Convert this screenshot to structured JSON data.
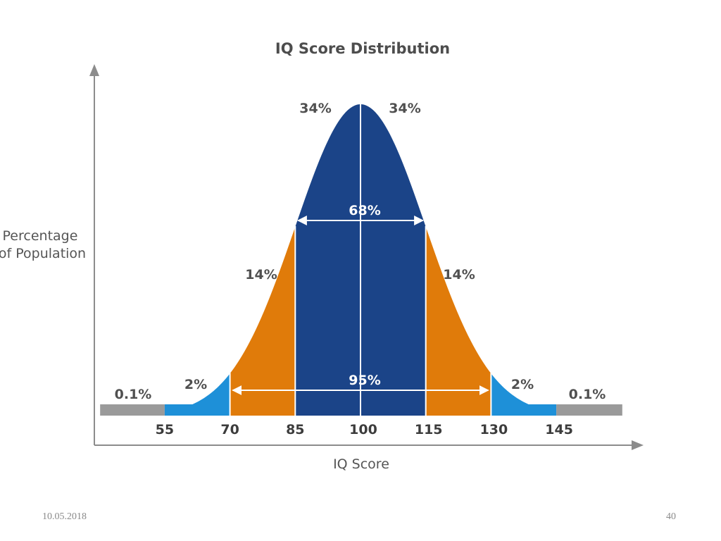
{
  "chart_data": {
    "type": "area",
    "title": "IQ Score Distribution",
    "xlabel": "IQ Score",
    "ylabel_lines": [
      "Percentage",
      "of Population"
    ],
    "x_ticks": [
      55,
      70,
      85,
      100,
      115,
      130,
      145
    ],
    "mean": 100,
    "std_dev": 15,
    "xlim": [
      40,
      160
    ],
    "segments": [
      {
        "from": 40,
        "to": 55,
        "label": "0.1%",
        "color": "#9a9a9a"
      },
      {
        "from": 55,
        "to": 70,
        "label": "2%",
        "color": "#1e90d8"
      },
      {
        "from": 70,
        "to": 85,
        "label": "14%",
        "color": "#e07b0a"
      },
      {
        "from": 85,
        "to": 100,
        "label": "34%",
        "color": "#1b4488"
      },
      {
        "from": 100,
        "to": 115,
        "label": "34%",
        "color": "#1b4488"
      },
      {
        "from": 115,
        "to": 130,
        "label": "14%",
        "color": "#e07b0a"
      },
      {
        "from": 130,
        "to": 145,
        "label": "2%",
        "color": "#1e90d8"
      },
      {
        "from": 145,
        "to": 160,
        "label": "0.1%",
        "color": "#9a9a9a"
      }
    ],
    "spans": [
      {
        "from": 85,
        "to": 115,
        "label": "68%"
      },
      {
        "from": 70,
        "to": 130,
        "label": "95%"
      }
    ]
  },
  "footer": {
    "date": "10.05.2018",
    "page": "40"
  }
}
